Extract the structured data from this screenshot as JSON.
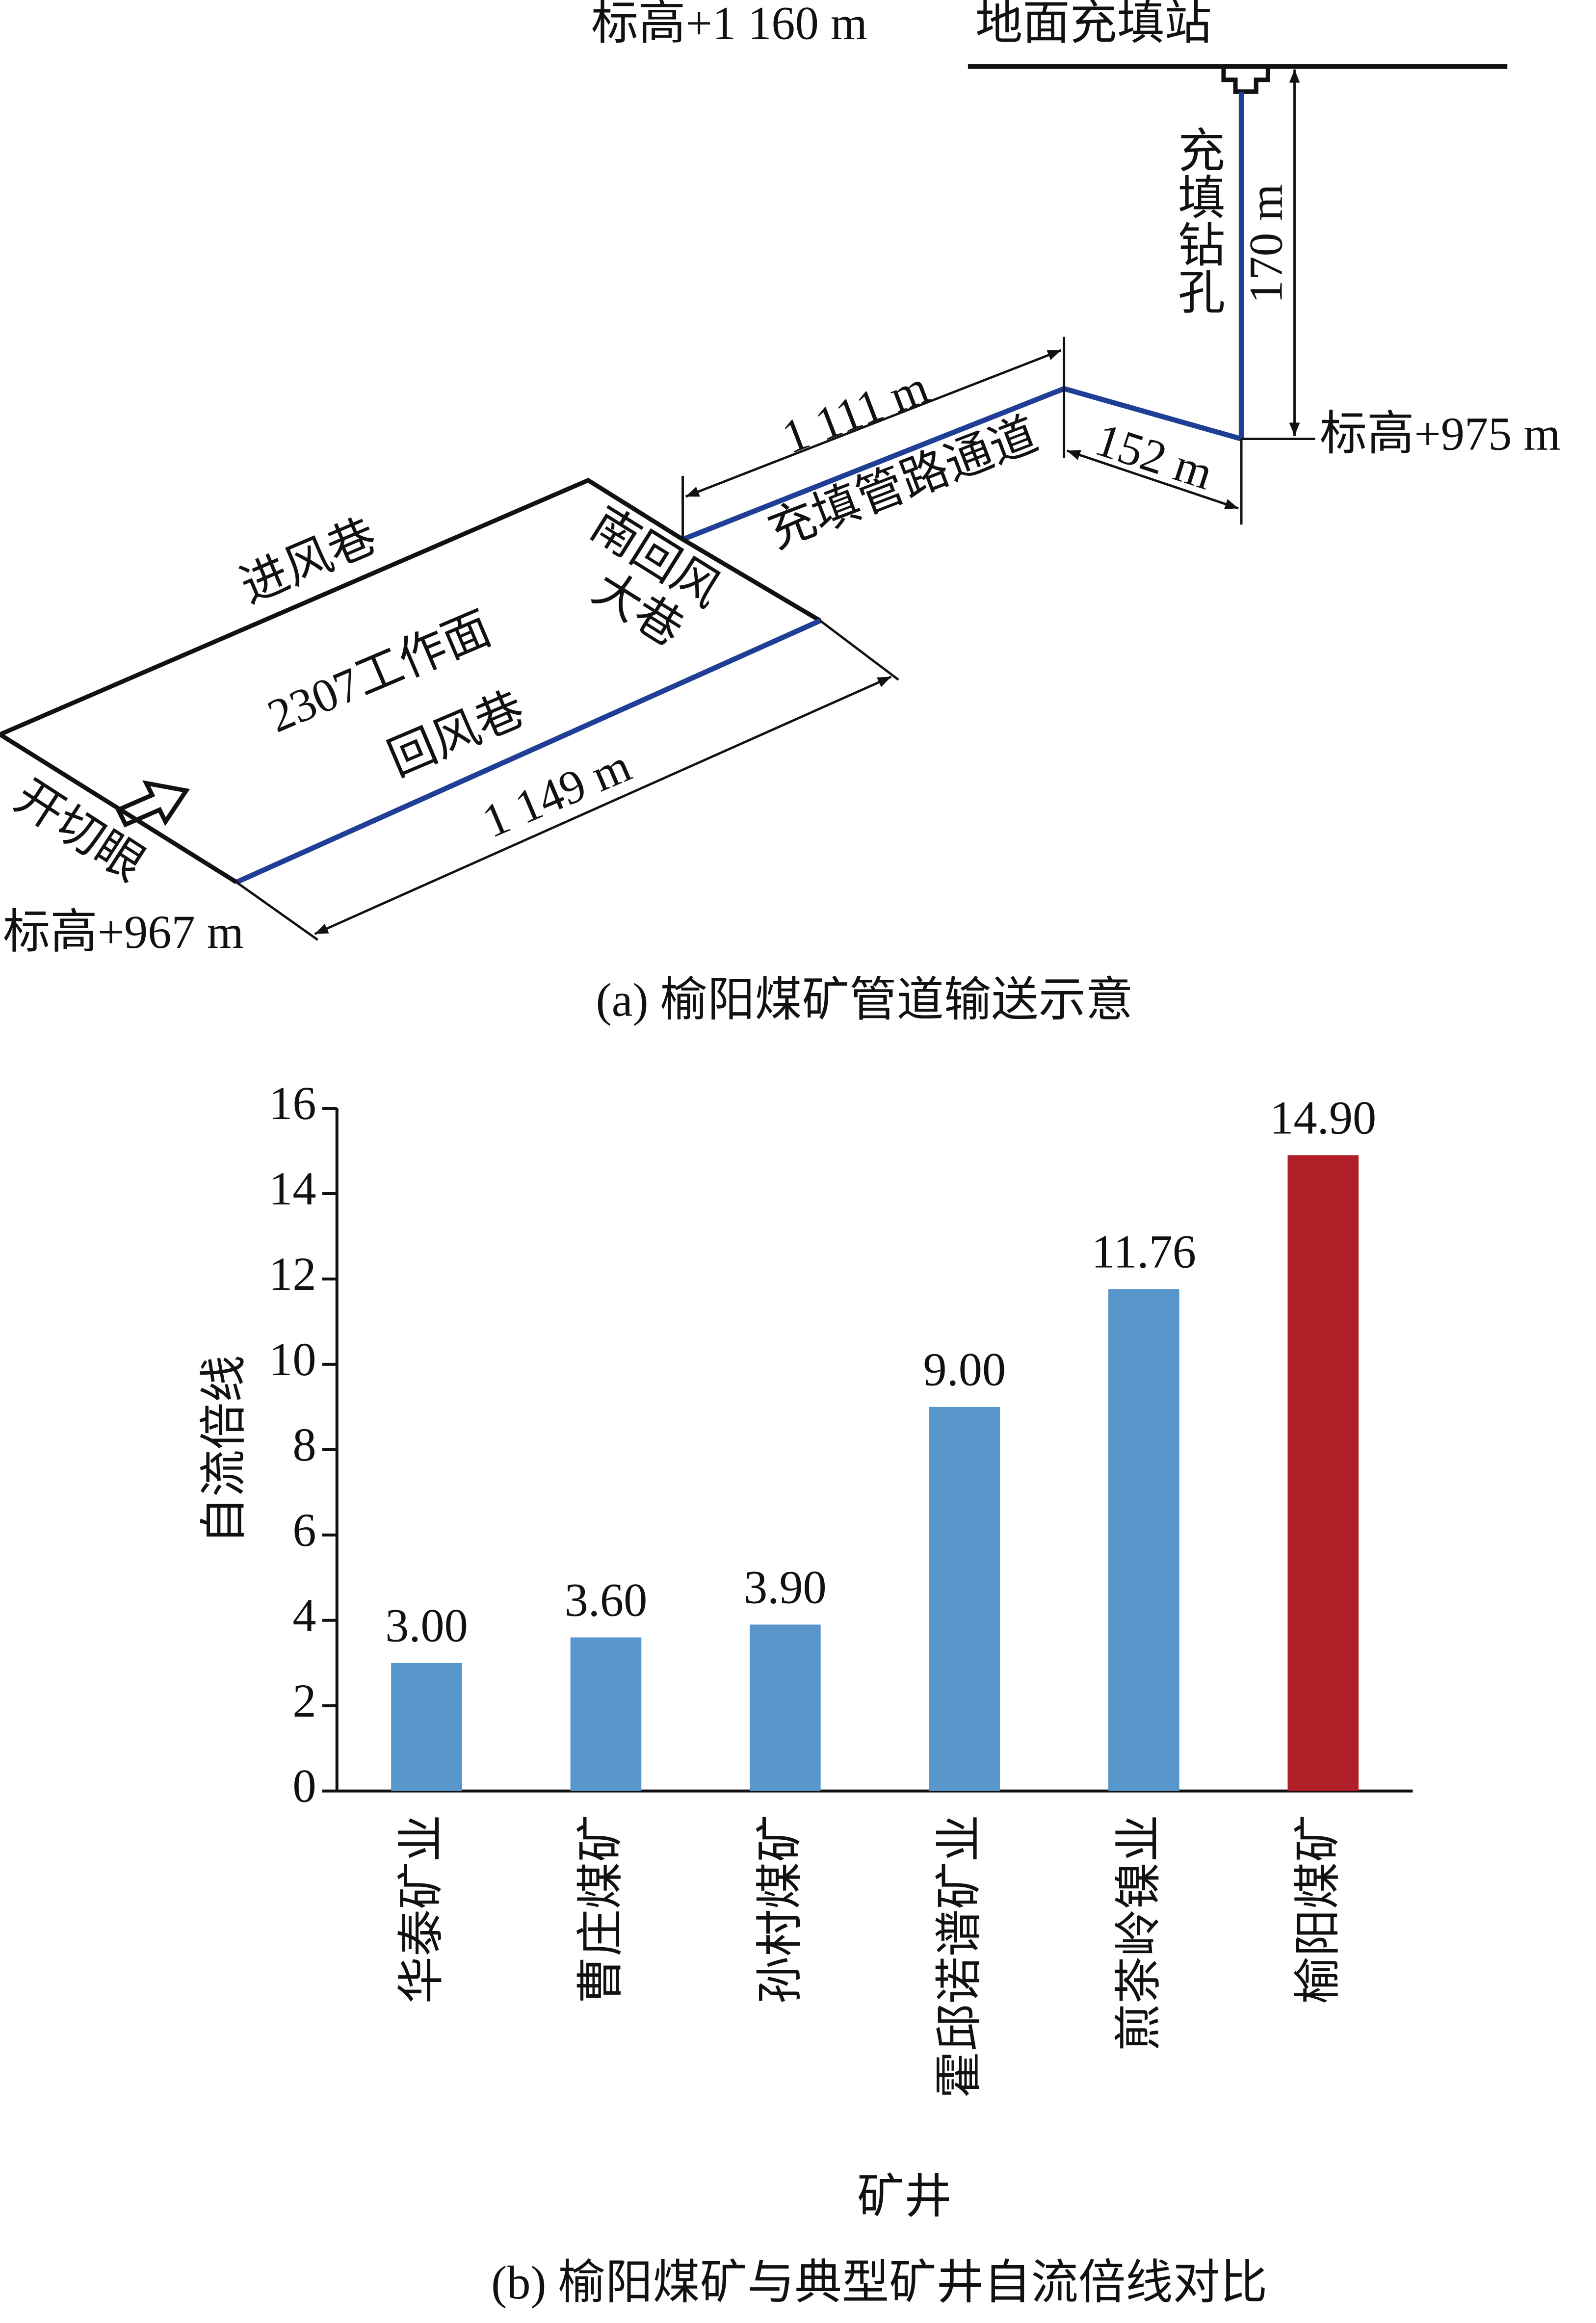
{
  "diagram": {
    "elevation_top": "标高+1 160 m",
    "station": "地面充填站",
    "borehole": "充填钻孔",
    "borehole_depth": "170 m",
    "elevation_mid": "标高+975 m",
    "pipe_length": "1 111 m",
    "short_length": "152 m",
    "pipe_channel": "充填管路通道",
    "south_return": [
      "南回风",
      "大巷"
    ],
    "intake": "进风巷",
    "face": "2307工作面",
    "return": "回风巷",
    "return_length": "1 149 m",
    "cut": "开切眼",
    "elevation_low": "标高+967 m",
    "caption": "(a)  榆阳煤矿管道输送示意"
  },
  "chart_data": {
    "type": "bar",
    "caption": "(b)  榆阳煤矿与典型矿井自流倍线对比",
    "xlabel": "矿井",
    "ylabel": "自流倍线",
    "categories": [
      "华泰矿业",
      "曹庄煤矿",
      "孙村煤矿",
      "霍邱诺谱矿业",
      "煎茶岭镍业",
      "榆阳煤矿"
    ],
    "values": [
      3.0,
      3.6,
      3.9,
      9.0,
      11.76,
      14.9
    ],
    "value_labels": [
      "3.00",
      "3.60",
      "3.90",
      "9.00",
      "11.76",
      "14.90"
    ],
    "colors": [
      "#5896cc",
      "#5896cc",
      "#5896cc",
      "#5896cc",
      "#5896cc",
      "#b01e28"
    ],
    "ylim": [
      0,
      16
    ],
    "yticks": [
      0,
      2,
      4,
      6,
      8,
      10,
      12,
      14,
      16
    ]
  }
}
